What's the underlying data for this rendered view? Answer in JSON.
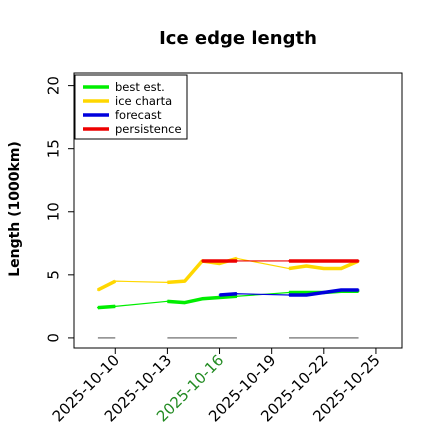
{
  "chart_data": {
    "type": "line",
    "title": "Ice edge length",
    "xlabel": "",
    "ylabel": "Length (1000km)",
    "x_ticks": [
      {
        "label": "2025-10-10",
        "color": "#000000"
      },
      {
        "label": "2025-10-13",
        "color": "#000000"
      },
      {
        "label": "2025-10-16",
        "color": "#228B22"
      },
      {
        "label": "2025-10-19",
        "color": "#000000"
      },
      {
        "label": "2025-10-22",
        "color": "#000000"
      },
      {
        "label": "2025-10-25",
        "color": "#000000"
      }
    ],
    "x_tick_dates": [
      "2025-10-10",
      "2025-10-13",
      "2025-10-16",
      "2025-10-19",
      "2025-10-22",
      "2025-10-25"
    ],
    "xlim": [
      "2025-10-07T15:00",
      "2025-10-26T12:00"
    ],
    "y_ticks": [
      "0",
      "5",
      "10",
      "15",
      "20"
    ],
    "ylim": [
      -0.8,
      21
    ],
    "grid": false,
    "legend_position": "top-left",
    "series": [
      {
        "name": "best est.",
        "color": "#00EE00",
        "style": "thin-line-with-thick-segments",
        "x": [
          "2025-10-09",
          "2025-10-10",
          "2025-10-13",
          "2025-10-14",
          "2025-10-15",
          "2025-10-16",
          "2025-10-17",
          "2025-10-20",
          "2025-10-21",
          "2025-10-22",
          "2025-10-23",
          "2025-10-24"
        ],
        "values": [
          2.4,
          2.5,
          2.9,
          2.8,
          3.1,
          3.2,
          3.3,
          3.6,
          3.6,
          3.6,
          3.7,
          3.7
        ],
        "segments": [
          [
            "2025-10-09",
            "2025-10-10"
          ],
          [
            "2025-10-13",
            "2025-10-17"
          ],
          [
            "2025-10-20",
            "2025-10-24"
          ]
        ]
      },
      {
        "name": "ice charta",
        "color": "#FFD700",
        "style": "thin-line-with-thick-segments",
        "x": [
          "2025-10-09",
          "2025-10-10",
          "2025-10-13",
          "2025-10-14",
          "2025-10-15",
          "2025-10-16",
          "2025-10-17",
          "2025-10-20",
          "2025-10-21",
          "2025-10-22",
          "2025-10-23",
          "2025-10-24"
        ],
        "values": [
          3.8,
          4.5,
          4.4,
          4.5,
          6.1,
          5.9,
          6.3,
          5.5,
          5.7,
          5.5,
          5.5,
          6.1
        ],
        "segments": [
          [
            "2025-10-09",
            "2025-10-10"
          ],
          [
            "2025-10-13",
            "2025-10-17"
          ],
          [
            "2025-10-20",
            "2025-10-24"
          ]
        ]
      },
      {
        "name": "forecast",
        "color": "#0000DD",
        "style": "thin-line-with-thick-segments",
        "x": [
          "2025-10-16",
          "2025-10-17",
          "2025-10-20",
          "2025-10-21",
          "2025-10-22",
          "2025-10-23",
          "2025-10-24"
        ],
        "values": [
          3.4,
          3.5,
          3.4,
          3.4,
          3.6,
          3.8,
          3.8
        ],
        "segments": [
          [
            "2025-10-16",
            "2025-10-17"
          ],
          [
            "2025-10-20",
            "2025-10-24"
          ]
        ]
      },
      {
        "name": "persistence",
        "color": "#EE0000",
        "style": "thin-line-with-thick-segments",
        "x": [
          "2025-10-15",
          "2025-10-16",
          "2025-10-17",
          "2025-10-20",
          "2025-10-21",
          "2025-10-22",
          "2025-10-23",
          "2025-10-24"
        ],
        "values": [
          6.1,
          6.1,
          6.1,
          6.1,
          6.1,
          6.1,
          6.1,
          6.1
        ],
        "segments": [
          [
            "2025-10-15",
            "2025-10-17"
          ],
          [
            "2025-10-20",
            "2025-10-24"
          ]
        ]
      }
    ],
    "baseline_segments": {
      "color": "#888888",
      "value": 0,
      "ranges": [
        [
          "2025-10-09",
          "2025-10-10"
        ],
        [
          "2025-10-13",
          "2025-10-17"
        ],
        [
          "2025-10-20",
          "2025-10-24"
        ]
      ]
    }
  }
}
